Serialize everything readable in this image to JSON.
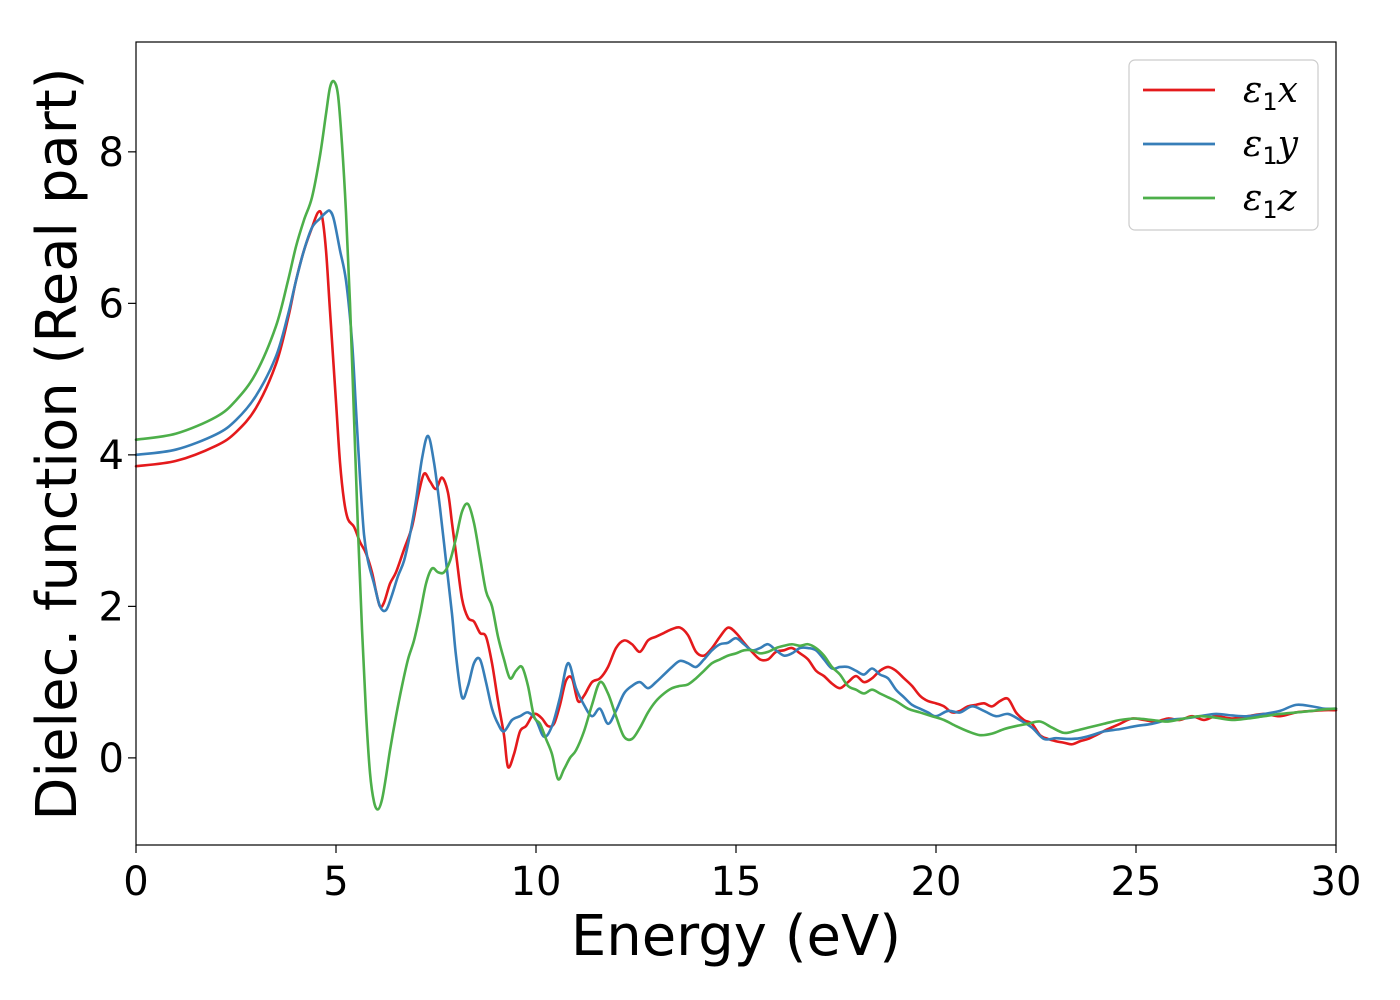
{
  "chart_data": {
    "type": "line",
    "xlabel": "Energy (eV)",
    "ylabel": "Dielec. function (Real part)",
    "xlim": [
      0,
      30
    ],
    "ylim": [
      -1.15,
      9.45
    ],
    "xticks": [
      0,
      5,
      10,
      15,
      20,
      25,
      30
    ],
    "yticks": [
      0,
      2,
      4,
      6,
      8
    ],
    "grid": false,
    "legend_position": "top-right",
    "series": [
      {
        "name": "ε1x",
        "legend": {
          "base": "ε",
          "sub": "1",
          "var": "x"
        },
        "color": "#e41a1c",
        "x": [
          0,
          1,
          2,
          2.5,
          3,
          3.5,
          3.8,
          4.0,
          4.2,
          4.4,
          4.55,
          4.65,
          4.75,
          4.85,
          5.0,
          5.1,
          5.2,
          5.3,
          5.45,
          5.6,
          5.75,
          5.9,
          6.0,
          6.1,
          6.2,
          6.35,
          6.5,
          6.7,
          6.9,
          7.05,
          7.2,
          7.35,
          7.5,
          7.65,
          7.8,
          7.9,
          8.0,
          8.15,
          8.3,
          8.45,
          8.6,
          8.75,
          8.9,
          9.05,
          9.2,
          9.3,
          9.45,
          9.6,
          9.75,
          9.9,
          10.0,
          10.15,
          10.3,
          10.45,
          10.6,
          10.75,
          10.9,
          11.05,
          11.2,
          11.4,
          11.6,
          11.8,
          12.0,
          12.2,
          12.4,
          12.6,
          12.8,
          13.0,
          13.2,
          13.4,
          13.6,
          13.8,
          14.0,
          14.2,
          14.4,
          14.6,
          14.8,
          15.0,
          15.2,
          15.4,
          15.6,
          15.8,
          16.0,
          16.2,
          16.4,
          16.6,
          16.8,
          17.0,
          17.2,
          17.4,
          17.6,
          17.8,
          18.0,
          18.2,
          18.4,
          18.6,
          18.8,
          19.0,
          19.2,
          19.4,
          19.6,
          19.8,
          20.0,
          20.2,
          20.4,
          20.6,
          20.8,
          21.0,
          21.2,
          21.4,
          21.6,
          21.8,
          22.0,
          22.2,
          22.4,
          22.6,
          22.8,
          23.0,
          23.2,
          23.4,
          23.6,
          23.8,
          24.0,
          24.3,
          24.6,
          24.9,
          25.2,
          25.5,
          25.8,
          26.1,
          26.4,
          26.7,
          27.0,
          27.4,
          27.8,
          28.2,
          28.6,
          29.0,
          29.4,
          29.7,
          30
        ],
        "y": [
          3.85,
          3.92,
          4.12,
          4.3,
          4.62,
          5.2,
          5.8,
          6.3,
          6.7,
          7.0,
          7.2,
          7.15,
          6.7,
          5.9,
          4.7,
          3.9,
          3.4,
          3.15,
          3.05,
          2.85,
          2.7,
          2.45,
          2.2,
          2.0,
          2.05,
          2.3,
          2.45,
          2.75,
          3.05,
          3.45,
          3.75,
          3.65,
          3.55,
          3.7,
          3.5,
          3.1,
          2.7,
          2.1,
          1.85,
          1.8,
          1.65,
          1.6,
          1.25,
          0.75,
          0.3,
          -0.12,
          0.05,
          0.35,
          0.42,
          0.55,
          0.58,
          0.52,
          0.42,
          0.45,
          0.7,
          1.02,
          1.05,
          0.75,
          0.82,
          1.0,
          1.05,
          1.2,
          1.45,
          1.55,
          1.5,
          1.4,
          1.55,
          1.6,
          1.65,
          1.7,
          1.72,
          1.62,
          1.4,
          1.35,
          1.45,
          1.6,
          1.72,
          1.65,
          1.52,
          1.4,
          1.3,
          1.3,
          1.4,
          1.42,
          1.45,
          1.38,
          1.3,
          1.15,
          1.08,
          0.98,
          0.92,
          1.0,
          1.08,
          1.0,
          1.05,
          1.15,
          1.2,
          1.15,
          1.05,
          0.95,
          0.82,
          0.75,
          0.72,
          0.68,
          0.6,
          0.62,
          0.68,
          0.7,
          0.72,
          0.68,
          0.75,
          0.78,
          0.6,
          0.5,
          0.45,
          0.3,
          0.25,
          0.22,
          0.2,
          0.18,
          0.22,
          0.25,
          0.3,
          0.38,
          0.45,
          0.52,
          0.5,
          0.48,
          0.52,
          0.5,
          0.55,
          0.5,
          0.55,
          0.52,
          0.55,
          0.58,
          0.55,
          0.6,
          0.62,
          0.63,
          0.63
        ]
      },
      {
        "name": "ε1y",
        "legend": {
          "base": "ε",
          "sub": "1",
          "var": "y"
        },
        "color": "#377eb8",
        "x": [
          0,
          1,
          2,
          2.5,
          3,
          3.5,
          3.8,
          4.0,
          4.2,
          4.4,
          4.6,
          4.75,
          4.85,
          4.95,
          5.1,
          5.25,
          5.4,
          5.5,
          5.6,
          5.7,
          5.8,
          5.95,
          6.1,
          6.25,
          6.4,
          6.55,
          6.7,
          6.85,
          7.0,
          7.15,
          7.3,
          7.45,
          7.6,
          7.75,
          7.9,
          8.0,
          8.15,
          8.3,
          8.45,
          8.6,
          8.75,
          8.9,
          9.05,
          9.2,
          9.4,
          9.6,
          9.8,
          10.0,
          10.2,
          10.4,
          10.6,
          10.8,
          11.0,
          11.2,
          11.4,
          11.6,
          11.8,
          12.0,
          12.2,
          12.4,
          12.6,
          12.8,
          13.0,
          13.2,
          13.4,
          13.6,
          13.8,
          14.0,
          14.2,
          14.4,
          14.6,
          14.8,
          15.0,
          15.2,
          15.4,
          15.6,
          15.8,
          16.0,
          16.2,
          16.4,
          16.6,
          16.8,
          17.0,
          17.2,
          17.4,
          17.6,
          17.8,
          18.0,
          18.2,
          18.4,
          18.6,
          18.8,
          19.0,
          19.2,
          19.4,
          19.6,
          19.8,
          20.0,
          20.3,
          20.6,
          20.9,
          21.2,
          21.5,
          21.8,
          22.1,
          22.4,
          22.7,
          23.0,
          23.3,
          23.6,
          23.9,
          24.2,
          24.6,
          25.0,
          25.4,
          25.8,
          26.2,
          26.6,
          27.0,
          27.4,
          27.8,
          28.2,
          28.6,
          29.0,
          29.4,
          29.7,
          30
        ],
        "y": [
          4.0,
          4.07,
          4.27,
          4.46,
          4.78,
          5.3,
          5.85,
          6.3,
          6.7,
          7.0,
          7.12,
          7.2,
          7.22,
          7.1,
          6.7,
          6.3,
          5.5,
          4.6,
          3.7,
          2.95,
          2.6,
          2.3,
          2.0,
          1.95,
          2.15,
          2.4,
          2.6,
          2.95,
          3.4,
          3.95,
          4.25,
          3.9,
          3.3,
          2.6,
          1.9,
          1.35,
          0.8,
          0.95,
          1.25,
          1.3,
          1.0,
          0.65,
          0.45,
          0.35,
          0.5,
          0.55,
          0.6,
          0.5,
          0.28,
          0.42,
          0.8,
          1.25,
          0.92,
          0.7,
          0.55,
          0.65,
          0.45,
          0.62,
          0.85,
          0.95,
          1.0,
          0.92,
          1.0,
          1.1,
          1.2,
          1.28,
          1.25,
          1.2,
          1.3,
          1.42,
          1.5,
          1.52,
          1.58,
          1.5,
          1.42,
          1.45,
          1.5,
          1.42,
          1.35,
          1.38,
          1.45,
          1.45,
          1.42,
          1.3,
          1.18,
          1.2,
          1.2,
          1.15,
          1.1,
          1.18,
          1.1,
          1.05,
          0.9,
          0.8,
          0.7,
          0.65,
          0.6,
          0.55,
          0.62,
          0.6,
          0.68,
          0.62,
          0.55,
          0.58,
          0.5,
          0.4,
          0.25,
          0.26,
          0.25,
          0.26,
          0.3,
          0.35,
          0.38,
          0.42,
          0.45,
          0.5,
          0.52,
          0.55,
          0.58,
          0.56,
          0.55,
          0.58,
          0.62,
          0.7,
          0.68,
          0.65,
          0.65
        ]
      },
      {
        "name": "ε1z",
        "legend": {
          "base": "ε",
          "sub": "1",
          "var": "z"
        },
        "color": "#4daf4a",
        "x": [
          0,
          1,
          2,
          2.5,
          3,
          3.5,
          3.8,
          4.0,
          4.2,
          4.4,
          4.6,
          4.75,
          4.85,
          4.95,
          5.05,
          5.15,
          5.25,
          5.35,
          5.45,
          5.55,
          5.65,
          5.75,
          5.85,
          5.95,
          6.05,
          6.15,
          6.25,
          6.35,
          6.5,
          6.65,
          6.8,
          6.95,
          7.1,
          7.25,
          7.4,
          7.55,
          7.7,
          7.85,
          8.0,
          8.15,
          8.3,
          8.45,
          8.6,
          8.75,
          8.9,
          9.05,
          9.2,
          9.35,
          9.5,
          9.65,
          9.8,
          9.95,
          10.1,
          10.25,
          10.4,
          10.55,
          10.7,
          10.85,
          11.0,
          11.2,
          11.4,
          11.6,
          11.8,
          12.0,
          12.2,
          12.4,
          12.6,
          12.8,
          13.0,
          13.2,
          13.4,
          13.6,
          13.8,
          14.0,
          14.2,
          14.4,
          14.6,
          14.8,
          15.0,
          15.2,
          15.4,
          15.6,
          15.8,
          16.0,
          16.2,
          16.4,
          16.6,
          16.8,
          17.0,
          17.2,
          17.4,
          17.6,
          17.8,
          18.0,
          18.2,
          18.4,
          18.6,
          18.8,
          19.0,
          19.3,
          19.6,
          19.9,
          20.2,
          20.5,
          20.8,
          21.1,
          21.4,
          21.7,
          22.0,
          22.3,
          22.6,
          22.9,
          23.2,
          23.5,
          23.8,
          24.2,
          24.6,
          25.0,
          25.4,
          25.8,
          26.2,
          26.6,
          27.0,
          27.4,
          27.8,
          28.2,
          28.6,
          29.0,
          29.4,
          29.7,
          30
        ],
        "y": [
          4.2,
          4.28,
          4.5,
          4.72,
          5.08,
          5.7,
          6.3,
          6.75,
          7.1,
          7.4,
          7.95,
          8.5,
          8.85,
          8.93,
          8.75,
          8.1,
          7.2,
          6.0,
          4.5,
          3.0,
          1.7,
          0.6,
          -0.2,
          -0.58,
          -0.68,
          -0.55,
          -0.25,
          0.1,
          0.55,
          0.95,
          1.3,
          1.55,
          1.9,
          2.3,
          2.5,
          2.45,
          2.45,
          2.6,
          2.9,
          3.25,
          3.35,
          3.1,
          2.65,
          2.2,
          2.0,
          1.6,
          1.3,
          1.05,
          1.15,
          1.2,
          0.95,
          0.55,
          0.45,
          0.25,
          0.05,
          -0.28,
          -0.15,
          0.0,
          0.1,
          0.35,
          0.7,
          1.0,
          0.85,
          0.55,
          0.28,
          0.25,
          0.4,
          0.6,
          0.75,
          0.85,
          0.92,
          0.95,
          0.97,
          1.05,
          1.15,
          1.25,
          1.3,
          1.35,
          1.38,
          1.42,
          1.42,
          1.38,
          1.4,
          1.45,
          1.48,
          1.5,
          1.48,
          1.5,
          1.45,
          1.35,
          1.2,
          1.1,
          0.95,
          0.9,
          0.85,
          0.9,
          0.85,
          0.8,
          0.75,
          0.65,
          0.6,
          0.55,
          0.5,
          0.42,
          0.35,
          0.3,
          0.32,
          0.38,
          0.42,
          0.45,
          0.48,
          0.4,
          0.33,
          0.36,
          0.4,
          0.45,
          0.5,
          0.52,
          0.5,
          0.48,
          0.52,
          0.55,
          0.53,
          0.5,
          0.52,
          0.55,
          0.58,
          0.6,
          0.62,
          0.64,
          0.65
        ]
      }
    ]
  }
}
